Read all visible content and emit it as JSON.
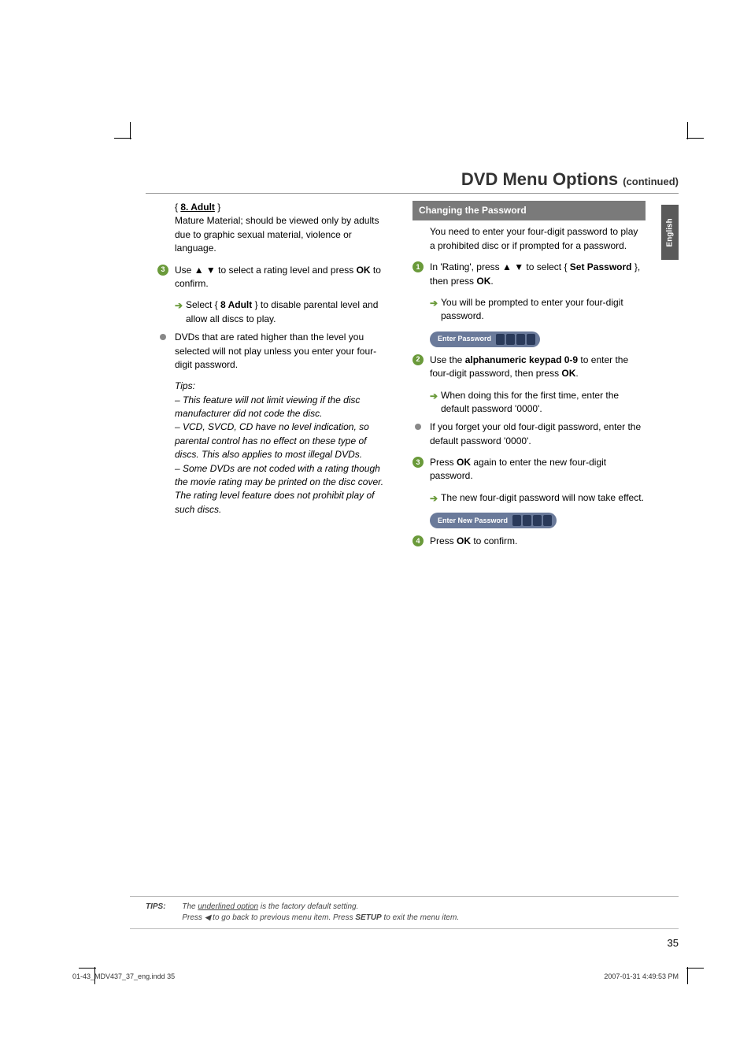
{
  "title": {
    "main": "DVD Menu Options ",
    "cont": "(continued)"
  },
  "lang_tab": "English",
  "left": {
    "adult_label": "8. Adult",
    "adult_desc": "Mature Material; should be viewed only by adults due to graphic sexual material, violence or language.",
    "step3_a": "Use ",
    "step3_b": " to select a rating level and press ",
    "step3_ok": "OK",
    "step3_c": " to confirm.",
    "step3_sub_a": "Select { ",
    "step3_sub_opt": "8 Adult",
    "step3_sub_b": " } to disable parental level and allow all discs to play.",
    "bullet1": "DVDs that are rated higher than the level you selected will not play unless you enter your four-digit password.",
    "tips_head": "Tips:",
    "tips1": "–  This feature will not limit viewing if the disc manufacturer did not code the disc.",
    "tips2": "–  VCD, SVCD, CD have no level indication, so parental control has no effect on these type of discs. This also applies to most illegal DVDs.",
    "tips3": "–  Some DVDs are not coded with a rating though the movie rating may be printed on the disc cover. The rating level feature does not prohibit play of such discs."
  },
  "right": {
    "section": "Changing the Password",
    "intro": "You need to enter your four-digit password to play a prohibited disc or if prompted for a password.",
    "s1_a": "In 'Rating', press ",
    "s1_b": " to select { ",
    "s1_opt": "Set Password",
    "s1_c": " }, then press ",
    "s1_ok": "OK",
    "s1_d": ".",
    "s1_sub": "You will be prompted to enter your four-digit password.",
    "pw1_label": "Enter Password",
    "s2_a": "Use the ",
    "s2_kpd": "alphanumeric keypad 0-9",
    "s2_b": " to enter the four-digit password, then press ",
    "s2_ok": "OK",
    "s2_c": ".",
    "s2_sub": "When doing this for the first time, enter the default password '0000'.",
    "bullet": "If you forget your old four-digit password, enter the default password '0000'.",
    "s3_a": "Press ",
    "s3_ok": "OK",
    "s3_b": " again to enter the new four-digit password.",
    "s3_sub": "The new four-digit password will now take effect.",
    "pw2_label": "Enter New Password",
    "s4_a": "Press ",
    "s4_ok": "OK",
    "s4_b": " to confirm."
  },
  "footer": {
    "tips_label": "TIPS:",
    "line1_a": "The ",
    "line1_u": "underlined option",
    "line1_b": " is the factory default setting.",
    "line2_a": "Press  ",
    "line2_b": " to go back to previous menu item. Press ",
    "line2_setup": "SETUP",
    "line2_c": " to exit the menu item."
  },
  "page_num": "35",
  "print": {
    "left": "01-43_MDV437_37_eng.indd   35",
    "right": "2007-01-31   4:49:53 PM"
  },
  "colors": {
    "accent_green": "#6a9a3a",
    "section_bar": "#7a7a7a",
    "lang_tab": "#5a5a5a",
    "pw_box": "#6a7a9a",
    "pw_cell": "#2a3a5a",
    "rule": "#999999"
  }
}
